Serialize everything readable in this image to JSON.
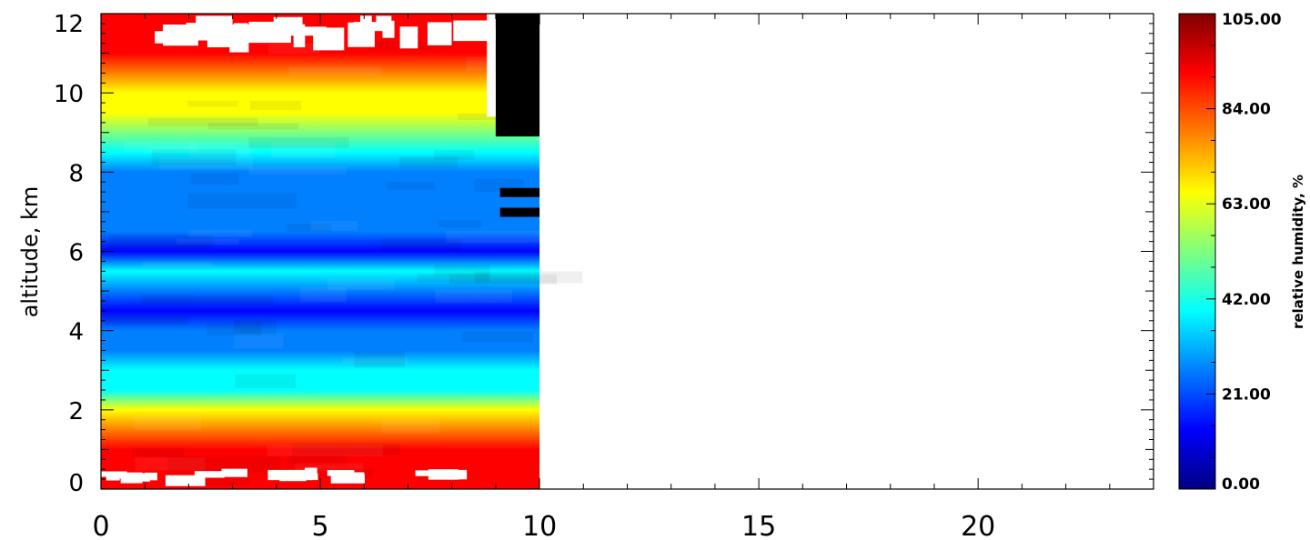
{
  "chart_data": {
    "type": "heatmap",
    "title": "",
    "xlabel": "",
    "ylabel": "altitude, km",
    "xlim": [
      0,
      24
    ],
    "ylim": [
      0,
      12
    ],
    "x_ticks": [
      "0",
      "5",
      "10",
      "15",
      "20"
    ],
    "x_tick_values": [
      0,
      5,
      10,
      15,
      20
    ],
    "y_ticks": [
      "0",
      "2",
      "4",
      "6",
      "8",
      "10",
      "12"
    ],
    "y_tick_values": [
      0,
      2,
      4,
      6,
      8,
      10,
      12
    ],
    "data_extent_x": [
      0,
      10
    ],
    "colorbar": {
      "label": "relative humidity, %",
      "min": 0,
      "max": 105,
      "ticks": [
        "0.00",
        "21.00",
        "42.00",
        "63.00",
        "84.00",
        "105.00"
      ],
      "tick_values": [
        0,
        21,
        42,
        63,
        84,
        105
      ],
      "colormap": [
        "#00007f",
        "#0000ff",
        "#007fff",
        "#00ffff",
        "#7fff7f",
        "#ffff00",
        "#ff7f00",
        "#ff0000",
        "#7f0000"
      ]
    },
    "profile": {
      "altitude_km": [
        0.0,
        0.5,
        1.0,
        1.5,
        2.0,
        2.5,
        3.0,
        3.5,
        4.0,
        4.5,
        5.0,
        5.5,
        6.0,
        6.5,
        7.0,
        7.5,
        8.0,
        8.5,
        9.0,
        9.5,
        10.0,
        10.5,
        11.0,
        11.5,
        12.0
      ],
      "relative_humidity_pct": [
        92,
        95,
        88,
        75,
        62,
        45,
        35,
        28,
        20,
        18,
        30,
        40,
        18,
        24,
        30,
        20,
        28,
        45,
        52,
        60,
        70,
        84,
        92,
        96,
        98
      ]
    },
    "grid": false,
    "legend": "colorbar-right"
  }
}
